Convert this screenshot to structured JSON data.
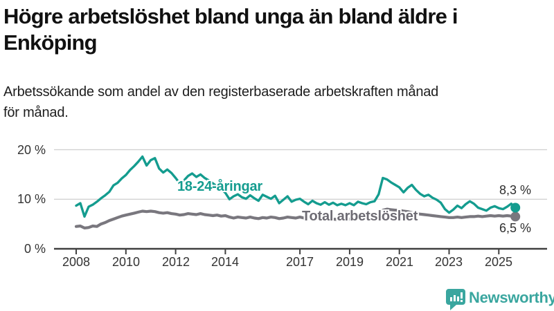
{
  "header": {
    "title_lines": [
      "Högre arbetslöshet bland unga än bland äldre i",
      "Enköping"
    ],
    "subtitle_lines": [
      "Arbetssökande som andel av den registerbaserade arbetskraften månad",
      "för månad."
    ]
  },
  "chart_data": {
    "type": "line",
    "title": "Högre arbetslöshet bland unga än bland äldre i Enköping",
    "subtitle": "Arbetssökande som andel av den registerbaserade arbetskraften månad för månad.",
    "x_unit": "months (one value per 2 months)",
    "x_start": 2008.0,
    "x_step_years": 0.1666667,
    "x_end": 2025.667,
    "xticks": [
      2008,
      2010,
      2012,
      2014,
      2017,
      2019,
      2021,
      2023,
      2025
    ],
    "xtick_labels": [
      "2008",
      "2010",
      "2012",
      "2014",
      "2017",
      "2019",
      "2021",
      "2023",
      "2025"
    ],
    "yticks": [
      0,
      10,
      20
    ],
    "ytick_labels": [
      "0 %",
      "10 %",
      "20 %"
    ],
    "ylim": [
      0,
      21.5
    ],
    "grid": "horizontal",
    "legend_position": "inline-labels",
    "axis_color": "#404040",
    "grid_color": "#d2d2d2",
    "series": [
      {
        "name": "18-24-åringar",
        "color": "#149c8f",
        "end_label": "8,3 %",
        "end_value": 8.3,
        "values": [
          8.7,
          9.2,
          6.5,
          8.5,
          8.9,
          9.5,
          10.2,
          10.8,
          11.5,
          12.8,
          13.3,
          14.2,
          14.9,
          15.9,
          16.7,
          17.6,
          18.6,
          16.8,
          17.9,
          18.3,
          16.2,
          15.4,
          16.0,
          15.3,
          14.3,
          13.2,
          13.8,
          14.7,
          15.2,
          14.5,
          15.0,
          14.3,
          13.8,
          13.2,
          12.6,
          12.1,
          11.3,
          10.0,
          10.6,
          11.0,
          10.4,
          10.1,
          10.8,
          10.2,
          9.7,
          10.9,
          10.5,
          10.1,
          10.7,
          9.2,
          9.9,
          10.6,
          9.5,
          9.9,
          10.1,
          9.5,
          9.0,
          9.7,
          9.2,
          8.9,
          9.4,
          8.9,
          9.3,
          8.8,
          9.1,
          8.8,
          9.2,
          8.8,
          9.5,
          9.2,
          9.0,
          9.4,
          9.6,
          11.0,
          14.3,
          14.0,
          13.4,
          12.9,
          12.4,
          11.4,
          12.3,
          12.9,
          11.9,
          11.1,
          10.6,
          10.9,
          10.3,
          9.9,
          9.3,
          8.0,
          7.3,
          7.9,
          8.7,
          8.2,
          9.0,
          9.6,
          9.1,
          8.3,
          8.0,
          7.7,
          8.3,
          8.6,
          8.2,
          8.0,
          8.5,
          9.1,
          8.3
        ]
      },
      {
        "name": "Total arbetslöshet",
        "color": "#79777e",
        "end_label": "6,5 %",
        "end_value": 6.5,
        "values": [
          4.5,
          4.6,
          4.2,
          4.3,
          4.6,
          4.5,
          5.0,
          5.3,
          5.7,
          6.0,
          6.3,
          6.6,
          6.8,
          7.0,
          7.2,
          7.4,
          7.6,
          7.5,
          7.6,
          7.5,
          7.3,
          7.2,
          7.3,
          7.1,
          7.0,
          6.8,
          6.9,
          7.1,
          7.0,
          6.9,
          7.1,
          6.9,
          6.8,
          6.7,
          6.8,
          6.6,
          6.7,
          6.4,
          6.2,
          6.4,
          6.3,
          6.2,
          6.4,
          6.2,
          6.1,
          6.3,
          6.2,
          6.4,
          6.3,
          6.1,
          6.2,
          6.4,
          6.3,
          6.2,
          6.4,
          6.2,
          6.1,
          6.3,
          6.2,
          6.0,
          6.1,
          5.9,
          6.0,
          5.9,
          6.0,
          5.9,
          6.0,
          5.9,
          6.1,
          6.0,
          6.1,
          6.2,
          6.3,
          7.0,
          7.8,
          8.0,
          7.9,
          7.8,
          7.8,
          7.6,
          7.5,
          7.3,
          7.1,
          7.0,
          6.9,
          6.8,
          6.7,
          6.6,
          6.5,
          6.4,
          6.3,
          6.3,
          6.4,
          6.3,
          6.4,
          6.5,
          6.5,
          6.6,
          6.5,
          6.6,
          6.7,
          6.6,
          6.7,
          6.6,
          6.7,
          6.6,
          6.5
        ]
      }
    ]
  },
  "footer": {
    "brand": "Newsworthy",
    "brand_color": "#3aa69f",
    "logo_icon": "bar-chart-speech-bubble"
  }
}
